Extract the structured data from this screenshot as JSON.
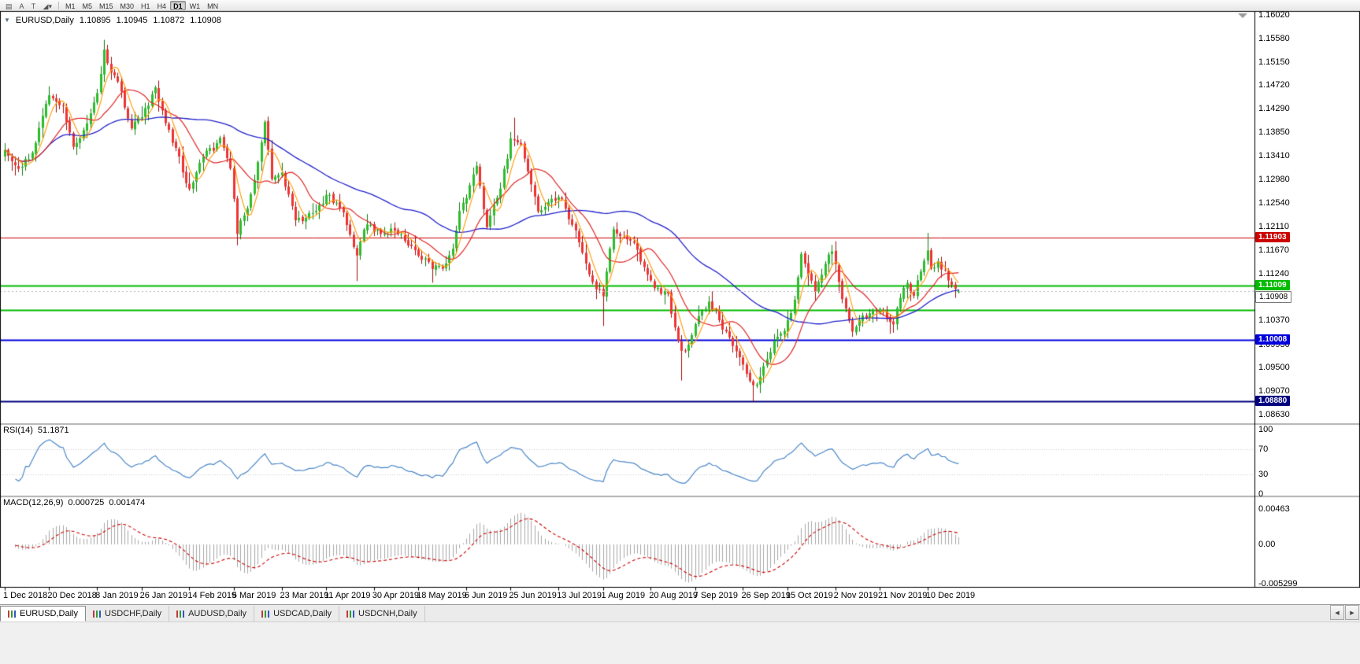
{
  "toolbar": {
    "icons": [
      {
        "name": "chart-window-icon",
        "glyph": "▤"
      },
      {
        "name": "cursor-tool-icon",
        "glyph": "A"
      },
      {
        "name": "text-tool-icon",
        "glyph": "T"
      },
      {
        "name": "draw-tools-icon",
        "glyph": "◢▾"
      }
    ],
    "timeframes": [
      "M1",
      "M5",
      "M15",
      "M30",
      "H1",
      "H4",
      "D1",
      "W1",
      "MN"
    ],
    "active_timeframe": "D1"
  },
  "main_chart": {
    "one_click_icon": "▼",
    "header": {
      "symbol": "EURUSD,Daily",
      "open": "1.10895",
      "high": "1.10945",
      "low": "1.10872",
      "close": "1.10908"
    }
  },
  "indicators": {
    "rsi": {
      "name": "RSI(14)",
      "value": "51.1871",
      "period": 14,
      "color": "#4a86c8",
      "levels": [
        70,
        30
      ],
      "scale": [
        {
          "label": "100",
          "value": 100
        },
        {
          "label": "70",
          "value": 70
        },
        {
          "label": "30",
          "value": 30
        },
        {
          "label": "0",
          "value": 0
        }
      ]
    },
    "macd": {
      "name": "MACD(12,26,9)",
      "value_main": "0.000725",
      "value_signal": "0.001474",
      "fast": 12,
      "slow": 26,
      "signal_period": 9,
      "hist_color": "#a8a8a8",
      "signal_color": "#cc0000",
      "scale": [
        {
          "label": "0.00463",
          "value": 0.00463
        },
        {
          "label": "0.00",
          "value": 0
        },
        {
          "label": "-0.005299",
          "value": -0.005299
        }
      ]
    }
  },
  "chart_data": {
    "type": "candlestick",
    "symbol": "EURUSD",
    "timeframe": "Daily",
    "visible_candles": 280,
    "y_axis": {
      "top_value": 1.1602,
      "bottom_value": 1.0863,
      "labels": [
        "1.16020",
        "1.15580",
        "1.15150",
        "1.14720",
        "1.14290",
        "1.13850",
        "1.13410",
        "1.12980",
        "1.12540",
        "1.12110",
        "1.11670",
        "1.11240",
        "1.10800",
        "1.10370",
        "1.09930",
        "1.09500",
        "1.09070",
        "1.08630"
      ]
    },
    "x_axis": {
      "labels": [
        {
          "text": "1 Dec 2018",
          "candle": 0
        },
        {
          "text": "20 Dec 2018",
          "candle": 13
        },
        {
          "text": "8 Jan 2019",
          "candle": 27
        },
        {
          "text": "26 Jan 2019",
          "candle": 40
        },
        {
          "text": "14 Feb 2019",
          "candle": 54
        },
        {
          "text": "5 Mar 2019",
          "candle": 67
        },
        {
          "text": "23 Mar 2019",
          "candle": 81
        },
        {
          "text": "11 Apr 2019",
          "candle": 94
        },
        {
          "text": "30 Apr 2019",
          "candle": 108
        },
        {
          "text": "18 May 2019",
          "candle": 121
        },
        {
          "text": "6 Jun 2019",
          "candle": 135
        },
        {
          "text": "25 Jun 2019",
          "candle": 148
        },
        {
          "text": "13 Jul 2019",
          "candle": 162
        },
        {
          "text": "1 Aug 2019",
          "candle": 175
        },
        {
          "text": "20 Aug 2019",
          "candle": 189
        },
        {
          "text": "7 Sep 2019",
          "candle": 202
        },
        {
          "text": "26 Sep 2019",
          "candle": 216
        },
        {
          "text": "15 Oct 2019",
          "candle": 229
        },
        {
          "text": "2 Nov 2019",
          "candle": 243
        },
        {
          "text": "21 Nov 2019",
          "candle": 256
        },
        {
          "text": "10 Dec 2019",
          "candle": 270
        }
      ]
    },
    "price_path_anchors": [
      [
        0,
        1.1358
      ],
      [
        4,
        1.1332
      ],
      [
        8,
        1.1348
      ],
      [
        13,
        1.1452
      ],
      [
        17,
        1.1436
      ],
      [
        20,
        1.1352
      ],
      [
        23,
        1.1398
      ],
      [
        27,
        1.1446
      ],
      [
        29,
        1.1532
      ],
      [
        31,
        1.1498
      ],
      [
        34,
        1.1464
      ],
      [
        37,
        1.1392
      ],
      [
        40,
        1.1416
      ],
      [
        44,
        1.1466
      ],
      [
        48,
        1.1394
      ],
      [
        51,
        1.1332
      ],
      [
        54,
        1.1274
      ],
      [
        58,
        1.1338
      ],
      [
        63,
        1.1366
      ],
      [
        66,
        1.1308
      ],
      [
        68,
        1.12
      ],
      [
        71,
        1.1254
      ],
      [
        74,
        1.1328
      ],
      [
        76,
        1.1404
      ],
      [
        78,
        1.1296
      ],
      [
        81,
        1.1304
      ],
      [
        85,
        1.1224
      ],
      [
        90,
        1.1232
      ],
      [
        94,
        1.127
      ],
      [
        99,
        1.1234
      ],
      [
        103,
        1.1156
      ],
      [
        106,
        1.1216
      ],
      [
        110,
        1.1194
      ],
      [
        114,
        1.1208
      ],
      [
        118,
        1.1182
      ],
      [
        121,
        1.1162
      ],
      [
        125,
        1.1132
      ],
      [
        128,
        1.114
      ],
      [
        131,
        1.1178
      ],
      [
        133,
        1.1242
      ],
      [
        136,
        1.1288
      ],
      [
        138,
        1.1332
      ],
      [
        141,
        1.1216
      ],
      [
        144,
        1.1254
      ],
      [
        148,
        1.1368
      ],
      [
        151,
        1.1372
      ],
      [
        154,
        1.1282
      ],
      [
        156,
        1.1232
      ],
      [
        159,
        1.1256
      ],
      [
        162,
        1.127
      ],
      [
        166,
        1.1216
      ],
      [
        170,
        1.1152
      ],
      [
        173,
        1.1088
      ],
      [
        175,
        1.1082
      ],
      [
        178,
        1.12
      ],
      [
        181,
        1.1186
      ],
      [
        184,
        1.117
      ],
      [
        188,
        1.1112
      ],
      [
        191,
        1.1094
      ],
      [
        194,
        1.1086
      ],
      [
        197,
        1.0994
      ],
      [
        199,
        1.0976
      ],
      [
        202,
        1.104
      ],
      [
        206,
        1.1074
      ],
      [
        209,
        1.1042
      ],
      [
        212,
        1.1006
      ],
      [
        216,
        1.0944
      ],
      [
        219,
        1.0906
      ],
      [
        222,
        1.0946
      ],
      [
        226,
        1.1006
      ],
      [
        229,
        1.1036
      ],
      [
        231,
        1.107
      ],
      [
        233,
        1.1148
      ],
      [
        235,
        1.1126
      ],
      [
        237,
        1.1084
      ],
      [
        240,
        1.1148
      ],
      [
        242,
        1.1166
      ],
      [
        245,
        1.108
      ],
      [
        248,
        1.1024
      ],
      [
        251,
        1.104
      ],
      [
        254,
        1.1054
      ],
      [
        256,
        1.1062
      ],
      [
        258,
        1.104
      ],
      [
        260,
        1.102
      ],
      [
        262,
        1.1078
      ],
      [
        264,
        1.1104
      ],
      [
        266,
        1.1084
      ],
      [
        268,
        1.113
      ],
      [
        270,
        1.1176
      ],
      [
        271,
        1.1142
      ],
      [
        273,
        1.1146
      ],
      [
        275,
        1.113
      ],
      [
        277,
        1.1098
      ],
      [
        279,
        1.1091
      ]
    ],
    "wick_extremes": [
      {
        "i": 13,
        "high": 1.147
      },
      {
        "i": 29,
        "high": 1.1556
      },
      {
        "i": 68,
        "low": 1.1176
      },
      {
        "i": 103,
        "low": 1.111
      },
      {
        "i": 125,
        "low": 1.1107
      },
      {
        "i": 149,
        "high": 1.1412
      },
      {
        "i": 175,
        "low": 1.1027
      },
      {
        "i": 198,
        "low": 1.0926
      },
      {
        "i": 219,
        "low": 1.0887
      },
      {
        "i": 270,
        "high": 1.1199
      }
    ],
    "last_candle": {
      "open": 1.10895,
      "high": 1.10945,
      "low": 1.10872,
      "close": 1.10908
    },
    "candle_colors": {
      "up_fill": "#2bbd2b",
      "up_edge": "#0f7d0f",
      "down_fill": "#ef3333",
      "down_edge": "#a01212"
    },
    "moving_averages": [
      {
        "name": "ma-fast",
        "period": 5,
        "color": "#ff9900"
      },
      {
        "name": "ma-medium",
        "period": 13,
        "color": "#e02828"
      },
      {
        "name": "ma-slow",
        "period": 50,
        "color": "#2020cc"
      }
    ],
    "horizontal_lines": [
      {
        "name": "resistance-line",
        "price": 1.11903,
        "tag": "1.11903",
        "color": "#cc0000",
        "width": 1
      },
      {
        "name": "support-zone-upper-line",
        "price": 1.11009,
        "tag": "1.11009",
        "color": "#00bb00",
        "width": 2
      },
      {
        "name": "support-zone-lower-line",
        "price": 1.1057,
        "tag": null,
        "color": "#00bb00",
        "width": 2
      },
      {
        "name": "support-line",
        "price": 1.10008,
        "tag": "1.10008",
        "color": "#0000dd",
        "width": 2
      },
      {
        "name": "deep-support-line",
        "price": 1.0888,
        "tag": "1.08880",
        "color": "#000080",
        "width": 2
      }
    ],
    "current_price": {
      "value": 1.10908,
      "tag": "1.10908"
    }
  },
  "tab_bar": {
    "tabs": [
      {
        "label": "EURUSD,Daily",
        "active": true
      },
      {
        "label": "USDCHF,Daily",
        "active": false
      },
      {
        "label": "AUDUSD,Daily",
        "active": false
      },
      {
        "label": "USDCAD,Daily",
        "active": false
      },
      {
        "label": "USDCNH,Daily",
        "active": false
      }
    ],
    "scroll_left": "◀",
    "scroll_right": "▶"
  }
}
